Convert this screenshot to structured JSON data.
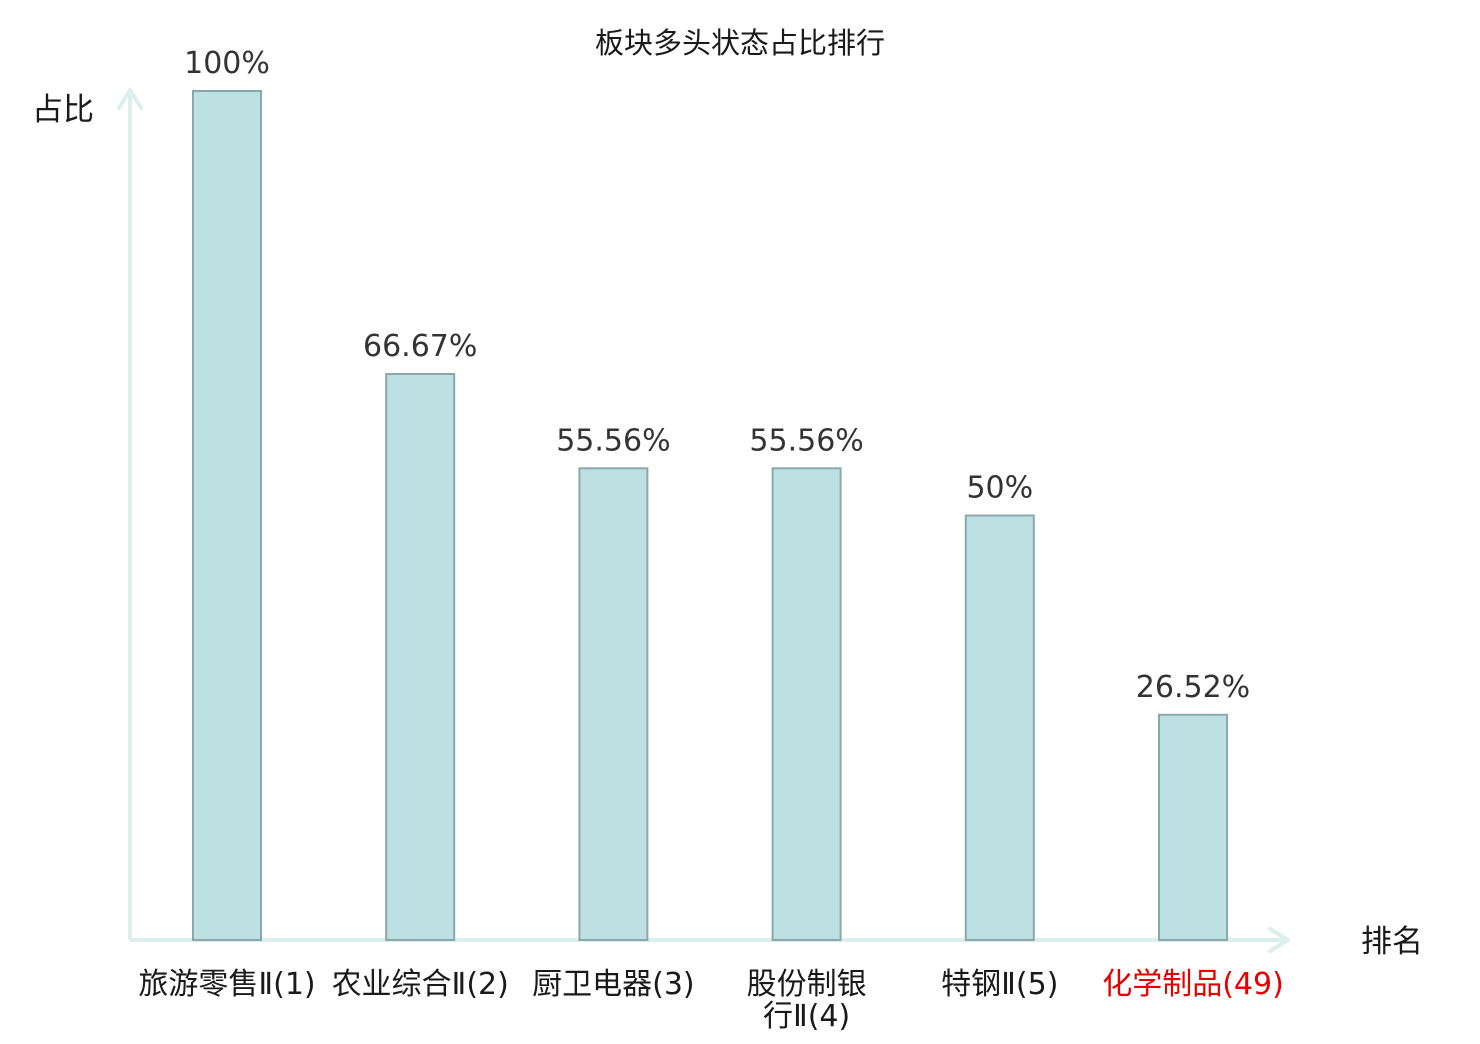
{
  "chart_data": {
    "type": "bar",
    "title": "板块多头状态占比排行",
    "ylabel": "占比",
    "xlabel": "排名",
    "ylim": [
      0,
      100
    ],
    "grid": false,
    "legend": "none",
    "categories": [
      {
        "name": "旅游零售",
        "suffix": "Ⅱ",
        "rank": "(1)"
      },
      {
        "name": "农业综合",
        "suffix": "Ⅱ",
        "rank": "(2)"
      },
      {
        "name": "厨卫电器",
        "suffix": "",
        "rank": "(3)"
      },
      {
        "name": "股份制银行",
        "suffix": "Ⅱ",
        "rank": "(4)"
      },
      {
        "name": "特钢",
        "suffix": "Ⅱ",
        "rank": "(5)"
      },
      {
        "name": "化学制品",
        "suffix": "",
        "rank": "(49)",
        "highlight": true
      }
    ],
    "values": [
      100,
      66.67,
      55.56,
      55.56,
      50,
      26.52
    ],
    "value_labels": [
      "100%",
      "66.67%",
      "55.56%",
      "55.56%",
      "50%",
      "26.52%"
    ],
    "colors": {
      "bar_fill": "#bde0e3",
      "bar_stroke": "#8aa8ab",
      "axis": "#dcefec",
      "highlight_text": "#e60000"
    }
  }
}
